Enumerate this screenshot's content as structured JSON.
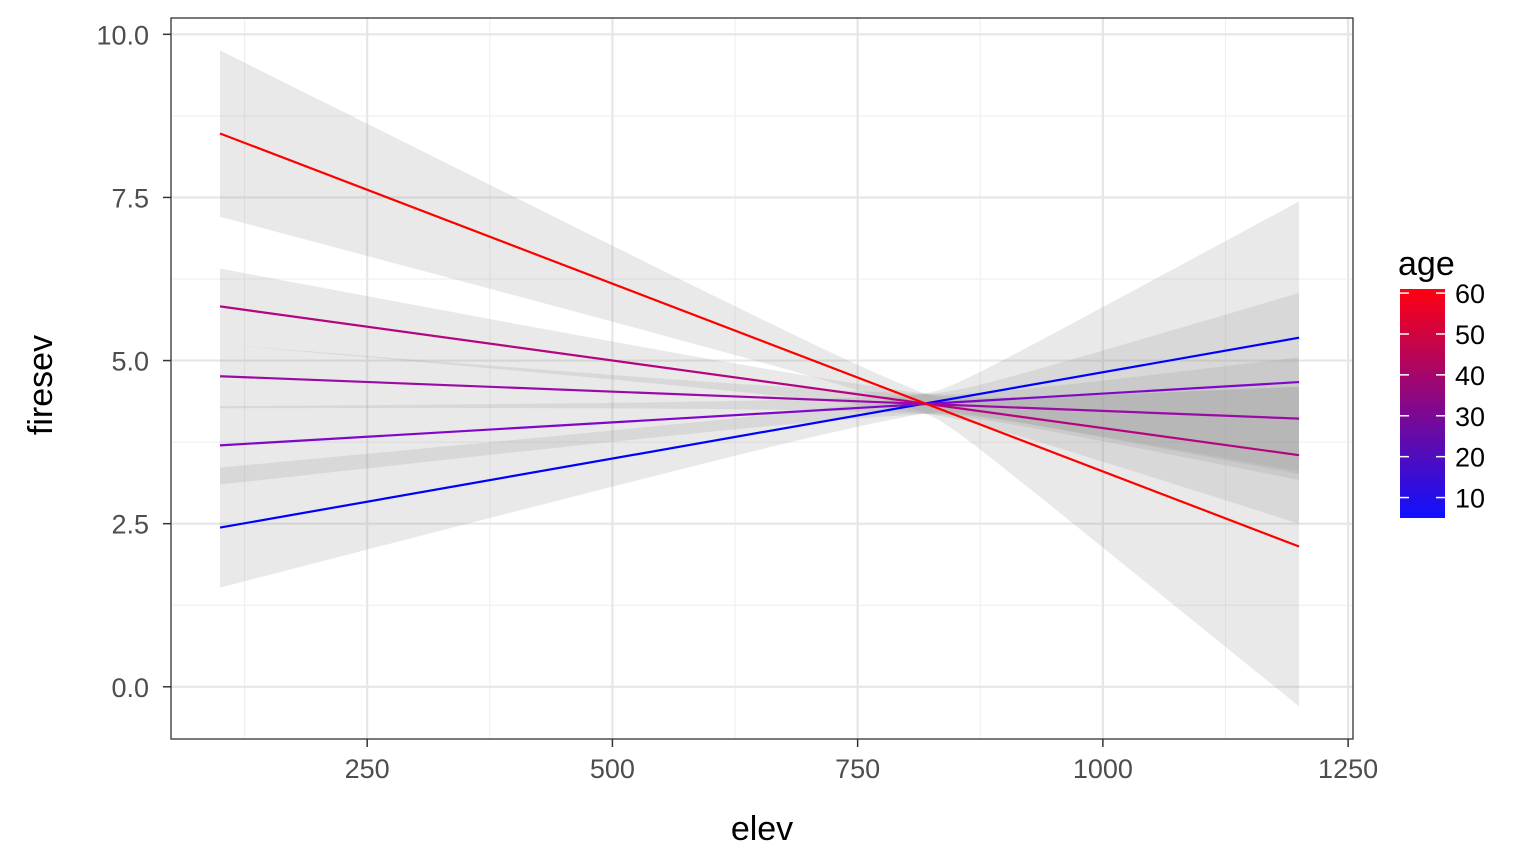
{
  "chart_data": {
    "type": "line",
    "title": "",
    "xlabel": "elev",
    "ylabel": "firesev",
    "xlim": [
      50,
      1255
    ],
    "ylim": [
      -0.8,
      10.25
    ],
    "x_ticks": [
      250,
      500,
      750,
      1000,
      1250
    ],
    "x_tick_labels": [
      "250",
      "500",
      "750",
      "1000",
      "1250"
    ],
    "y_ticks": [
      0,
      2.5,
      5,
      7.5,
      10
    ],
    "y_tick_labels": [
      "0.0",
      "2.5",
      "5.0",
      "7.5",
      "10.0"
    ],
    "grid": true,
    "legend": {
      "title": "age",
      "placement": "right",
      "type": "colorbar",
      "range": [
        5,
        61
      ],
      "ticks": [
        10,
        20,
        30,
        40,
        50,
        60
      ],
      "tick_labels": [
        "10",
        "20",
        "30",
        "40",
        "50",
        "60"
      ],
      "low_color": "#1010ff",
      "high_color": "#ff0010"
    },
    "series": [
      {
        "age": 5,
        "color": "#0000ff",
        "x": [
          100,
          1200
        ],
        "y": [
          2.44,
          5.35
        ],
        "ci_lower": [
          1.52,
          3.22
        ],
        "ci_upper": [
          3.36,
          7.4
        ]
      },
      {
        "age": 20,
        "color": "#7f07c8",
        "x": [
          100,
          1200
        ],
        "y": [
          3.7,
          4.67
        ],
        "ci_lower": [
          3.1,
          3.3
        ],
        "ci_upper": [
          4.3,
          6.03
        ]
      },
      {
        "age": 30,
        "color": "#9a0aa5",
        "x": [
          100,
          1200
        ],
        "y": [
          4.76,
          4.11
        ],
        "ci_lower": [
          4.27,
          3.18
        ],
        "ci_upper": [
          5.25,
          5.06
        ]
      },
      {
        "age": 40,
        "color": "#b50482",
        "x": [
          100,
          1200
        ],
        "y": [
          5.83,
          3.55
        ],
        "ci_lower": [
          5.25,
          2.5
        ],
        "ci_upper": [
          6.41,
          4.6
        ]
      },
      {
        "age": 60,
        "color": "#ff0000",
        "x": [
          100,
          1200
        ],
        "y": [
          8.48,
          2.15
        ],
        "ci_lower": [
          7.2,
          -0.3
        ],
        "ci_upper": [
          9.75,
          4.6
        ]
      }
    ]
  }
}
